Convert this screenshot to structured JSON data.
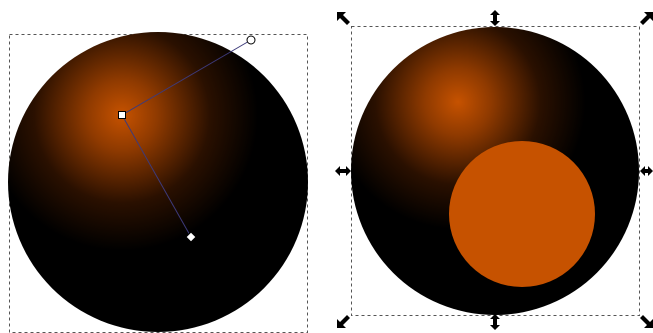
{
  "canvas": {
    "background": "#ffffff",
    "selection_box_color": "#555555",
    "gradient_line_color": "#3d3a7a",
    "handle_color": "#000000"
  },
  "left_object": {
    "shape": "circle",
    "fill": "radial-gradient",
    "gradient_center_color": "#c65200",
    "gradient_outer_color": "#000000",
    "tool": "gradient-editor",
    "gradient_handles": [
      "gradient-center-handle",
      "gradient-radius-handle-horizontal",
      "gradient-radius-handle-vertical"
    ]
  },
  "right_object": {
    "shape": "circle",
    "fill": "radial-gradient",
    "gradient_center_color": "#c65200",
    "gradient_outer_color": "#000000",
    "tool": "selector",
    "selected": true,
    "inner_circle": {
      "shape": "circle",
      "fill": "#c65200"
    },
    "transform_handles": [
      "scale-handle-nw",
      "scale-handle-n",
      "scale-handle-ne",
      "scale-handle-w",
      "scale-handle-e",
      "scale-handle-sw",
      "scale-handle-s",
      "scale-handle-se"
    ]
  }
}
